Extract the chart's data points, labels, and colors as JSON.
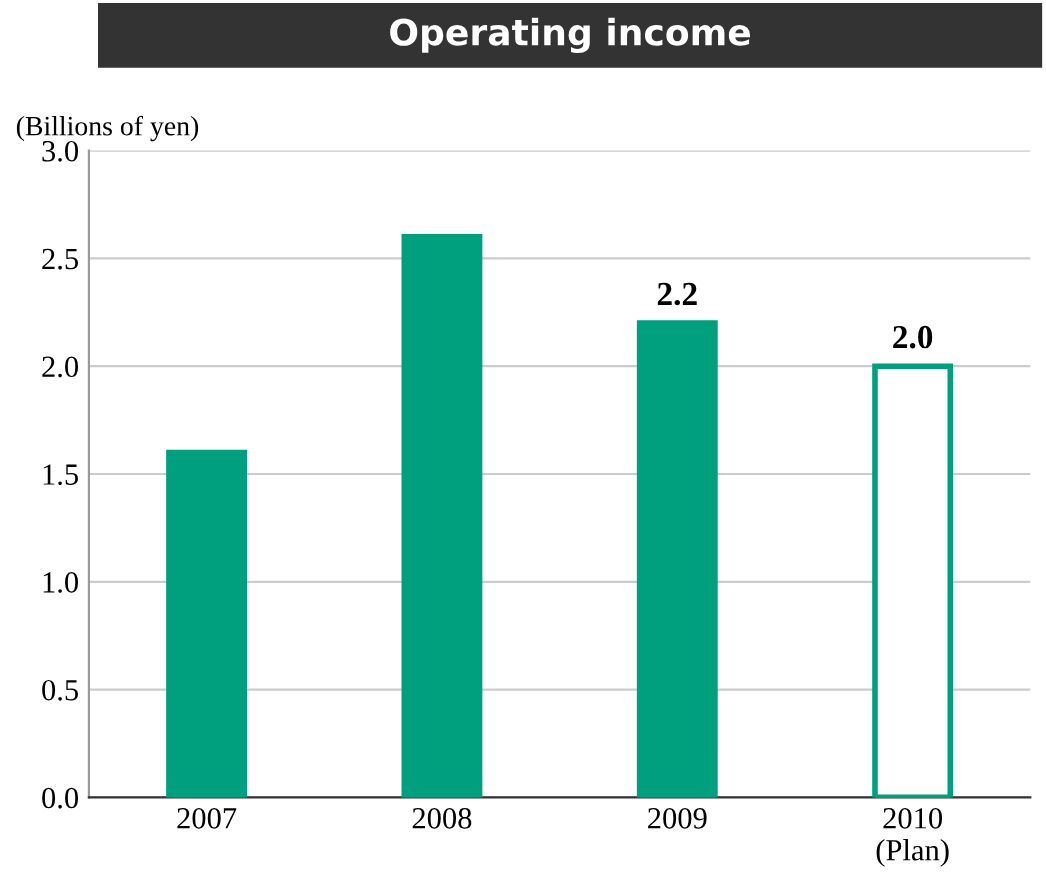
{
  "chart_data": {
    "type": "bar",
    "title": "Operating income",
    "ylabel": "(Billions of yen)",
    "categories": [
      "2007",
      "2008",
      "2009",
      "2010\n(Plan)"
    ],
    "values": [
      1.6,
      2.6,
      2.2,
      2.0
    ],
    "value_labels": [
      null,
      null,
      "2.2",
      "2.0"
    ],
    "color": "#00a07f",
    "colors": [
      "#00a07f",
      "#00a07f",
      "#00a07f",
      "#ffffff"
    ],
    "ylim": [
      0,
      3
    ],
    "yticks": [
      {
        "value": 0,
        "label": "0.0"
      },
      {
        "value": 0.5,
        "label": "0.5"
      },
      {
        "value": 1,
        "label": "1.0"
      },
      {
        "value": 1.5,
        "label": "1.5"
      },
      {
        "value": 2,
        "label": "2.0"
      },
      {
        "value": 2.5,
        "label": "2.5"
      },
      {
        "value": 3,
        "label": "3.0"
      }
    ],
    "grid": "y",
    "legend": false
  }
}
